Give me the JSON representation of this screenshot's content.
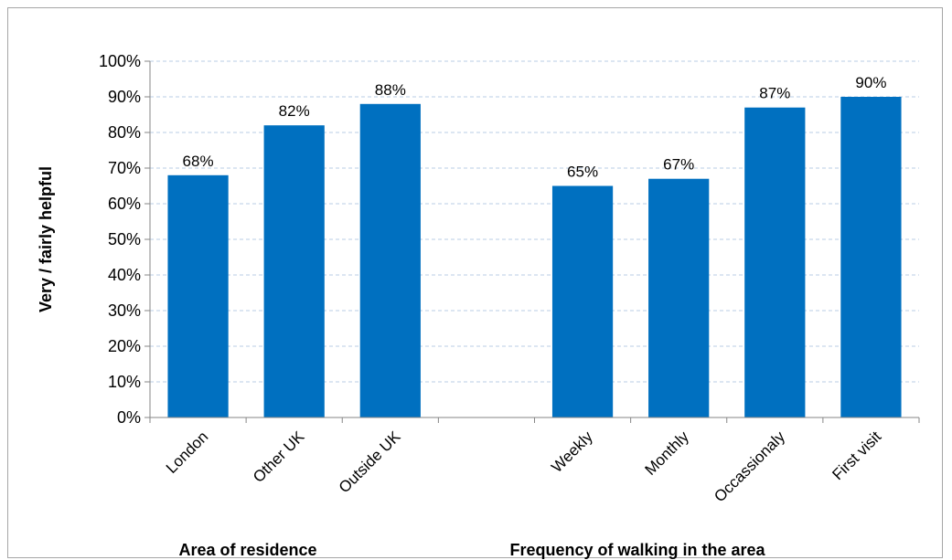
{
  "chart_data": {
    "type": "bar",
    "ylabel": "Very / fairly helpful",
    "ylim": [
      0,
      100
    ],
    "ytick_values": [
      0,
      10,
      20,
      30,
      40,
      50,
      60,
      70,
      80,
      90,
      100
    ],
    "ytick_labels": [
      "0%",
      "10%",
      "20%",
      "30%",
      "40%",
      "50%",
      "60%",
      "70%",
      "80%",
      "90%",
      "100%"
    ],
    "grid": true,
    "bar_color": "#0070c0",
    "groups": [
      {
        "title": "Area of residence",
        "categories": [
          "London",
          "Other UK",
          "Outside UK"
        ],
        "values": [
          68,
          82,
          88
        ],
        "labels": [
          "68%",
          "82%",
          "88%"
        ]
      },
      {
        "title": "Frequency of walking in the area",
        "categories": [
          "Weekly",
          "Monthly",
          "Occassionaly",
          "First visit"
        ],
        "values": [
          65,
          67,
          87,
          90
        ],
        "labels": [
          "65%",
          "67%",
          "87%",
          "90%"
        ]
      }
    ]
  }
}
